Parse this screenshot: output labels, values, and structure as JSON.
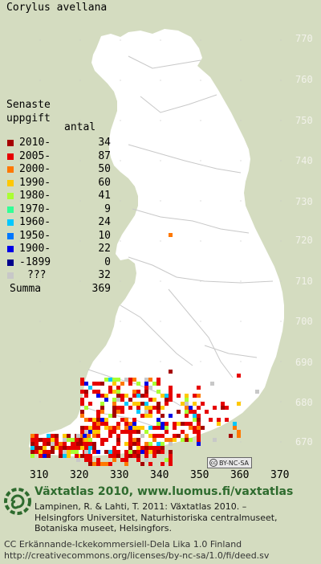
{
  "species": "Corylus avellana",
  "legend": {
    "title_line1": "Senaste",
    "title_line2": "uppgift",
    "count_header": "antal",
    "items": [
      {
        "label": "2010-",
        "count": "34",
        "color": "#a50000"
      },
      {
        "label": "2005-",
        "count": "87",
        "color": "#e60000"
      },
      {
        "label": "2000-",
        "count": "50",
        "color": "#ff7800"
      },
      {
        "label": "1990-",
        "count": "60",
        "color": "#ffc800"
      },
      {
        "label": "1980-",
        "count": "41",
        "color": "#aaff32"
      },
      {
        "label": "1970-",
        "count": "9",
        "color": "#32ff96"
      },
      {
        "label": "1960-",
        "count": "24",
        "color": "#00c8ff"
      },
      {
        "label": "1950-",
        "count": "10",
        "color": "#0078ff"
      },
      {
        "label": "1900-",
        "count": "22",
        "color": "#0000e6"
      },
      {
        "label": "-1899",
        "count": "0",
        "color": "#00008c"
      },
      {
        "label": "???",
        "count": "32",
        "color": "#c8c8c8"
      }
    ],
    "sum_label": "Summa",
    "sum_count": "369"
  },
  "y_ticks": [
    "770",
    "760",
    "750",
    "740",
    "730",
    "720",
    "710",
    "700",
    "690",
    "680",
    "670"
  ],
  "x_ticks": [
    "310",
    "320",
    "330",
    "340",
    "350",
    "360",
    "370"
  ],
  "footer": {
    "title": "Växtatlas 2010, www.luomus.fi/vaxtatlas",
    "ref_line1": "Lampinen, R. & Lahti, T. 2011: Växtatlas 2010. –",
    "ref_line2": "Helsingfors Universitet, Naturhistoriska centralmuseet,",
    "ref_line3": "Botaniska museet, Helsingfors.",
    "license_line1": "CC Erkännande-Ickekommersiell-Dela Lika 1.0 Finland",
    "license_line2": "http://creativecommons.org/licenses/by-nc-sa/1.0/fi/deed.sv"
  },
  "badge_text": "BY-NC-SA",
  "colors": {
    "background": "#d4dcc0",
    "land": "#ffffff",
    "borders": "#c8c8c8",
    "footer_title": "#2e6b2e"
  },
  "icons": [
    "map-finland",
    "cc-by-nc-sa-badge",
    "luomus-spiral-logo"
  ]
}
